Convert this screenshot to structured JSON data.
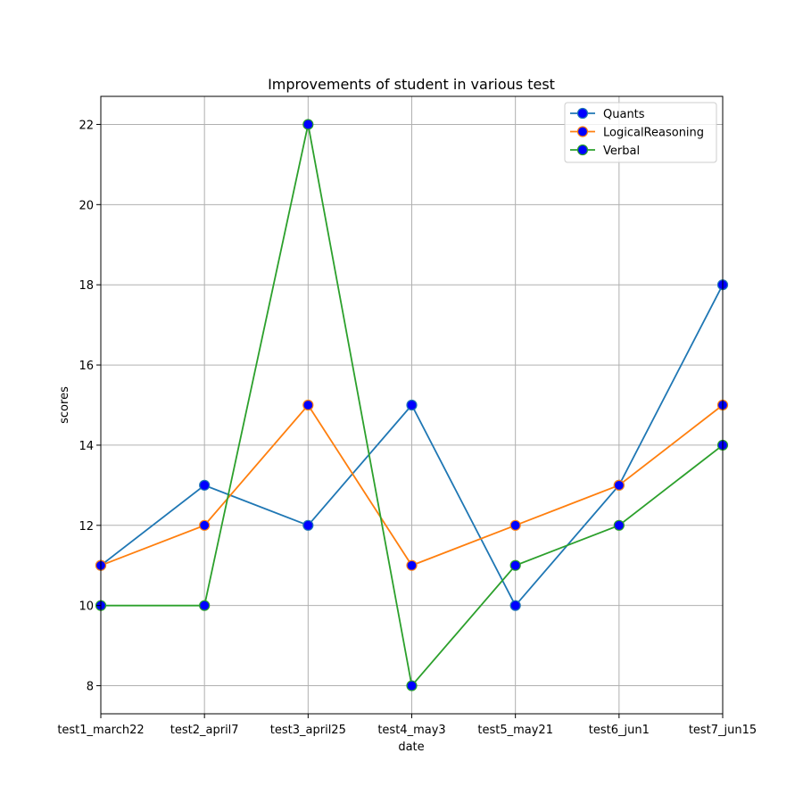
{
  "chart_data": {
    "type": "line",
    "title": "Improvements of student in various test",
    "xlabel": "date",
    "ylabel": "scores",
    "categories": [
      "test1_march22",
      "test2_april7",
      "test3_april25",
      "test4_may3",
      "test5_may21",
      "test6_jun1",
      "test7_jun15"
    ],
    "ylim": [
      7.3,
      22.7
    ],
    "yticks": [
      8,
      10,
      12,
      14,
      16,
      18,
      20,
      22
    ],
    "grid": true,
    "legend_position": "top-right",
    "marker_face_color": "#0000ff",
    "series": [
      {
        "name": "Quants",
        "color": "#1f77b4",
        "values": [
          11,
          13,
          12,
          15,
          10,
          13,
          18
        ]
      },
      {
        "name": "LogicalReasoning",
        "color": "#ff7f0e",
        "values": [
          11,
          12,
          15,
          11,
          12,
          13,
          15
        ]
      },
      {
        "name": "Verbal",
        "color": "#2ca02c",
        "values": [
          10,
          10,
          22,
          8,
          11,
          12,
          14
        ]
      }
    ]
  }
}
